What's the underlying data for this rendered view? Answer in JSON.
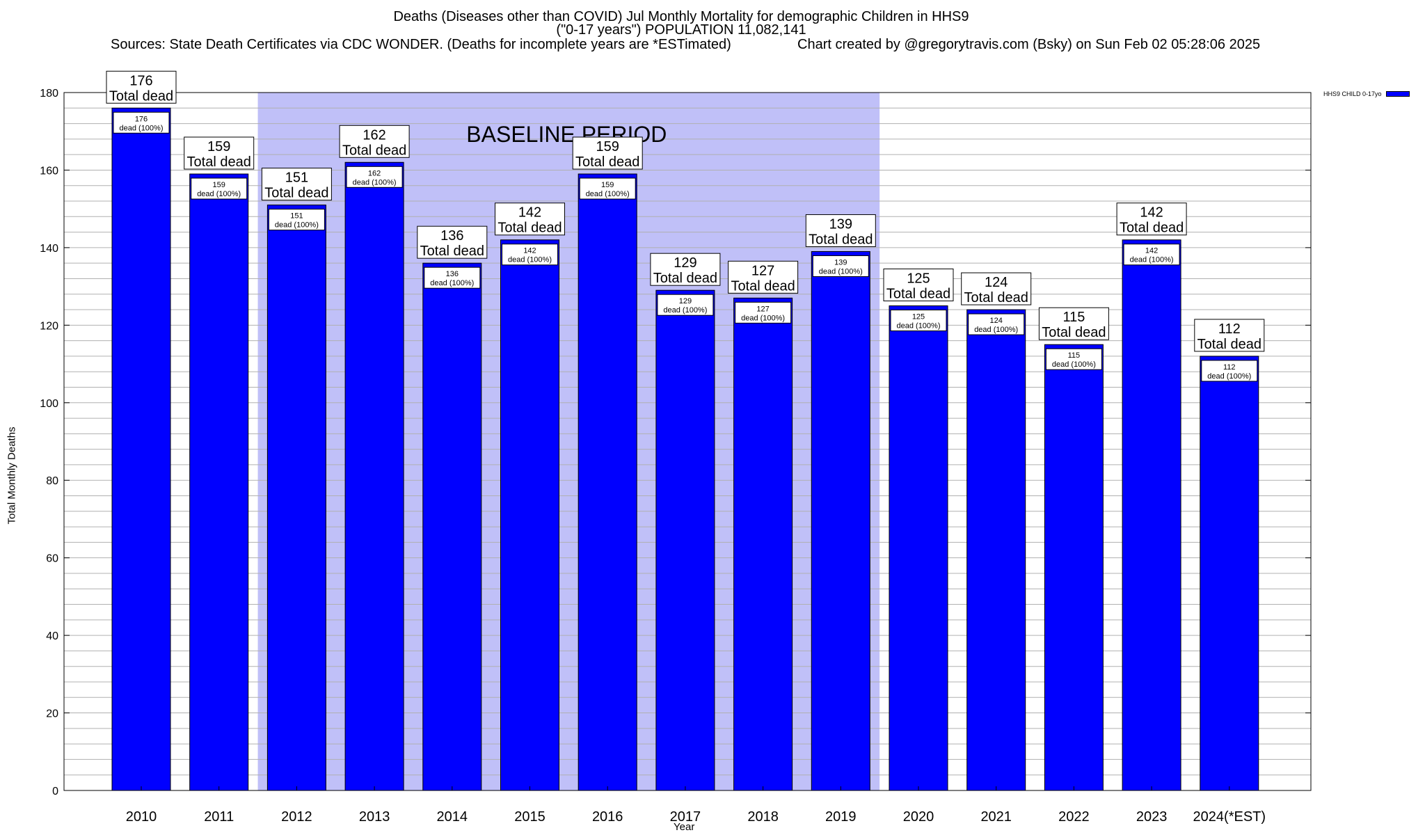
{
  "chart_data": {
    "type": "bar",
    "title": "Deaths (Diseases other than COVID) Jul Monthly Mortality for demographic Children in HHS9",
    "subtitle": "(\"0-17 years\") POPULATION 11,082,141",
    "sources": "Sources: State Death Certificates via CDC WONDER. (Deaths for incomplete years are *ESTimated)",
    "credit": "Chart created by @gregorytravis.com (Bsky) on Sun Feb 02 05:28:06 2025",
    "xlabel": "Year",
    "ylabel": "Total Monthly Deaths",
    "ylim": [
      0,
      180
    ],
    "yticks": [
      0,
      20,
      40,
      60,
      80,
      100,
      120,
      140,
      160,
      180
    ],
    "categories": [
      "2010",
      "2011",
      "2012",
      "2013",
      "2014",
      "2015",
      "2016",
      "2017",
      "2018",
      "2019",
      "2020",
      "2021",
      "2022",
      "2023",
      "2024(*EST)"
    ],
    "values": [
      176,
      159,
      151,
      162,
      136,
      142,
      159,
      129,
      127,
      139,
      125,
      124,
      115,
      142,
      112
    ],
    "total_label": "Total dead",
    "inner_label": "dead (100%)",
    "legend": "HHS9 CHILD 0-17yo",
    "baseline_label": "BASELINE PERIOD",
    "baseline_range": [
      "2012",
      "2019"
    ],
    "colors": {
      "bar": "#0000ff",
      "baseline": "#c0c0f8",
      "grid": "#b0b0b0"
    }
  }
}
